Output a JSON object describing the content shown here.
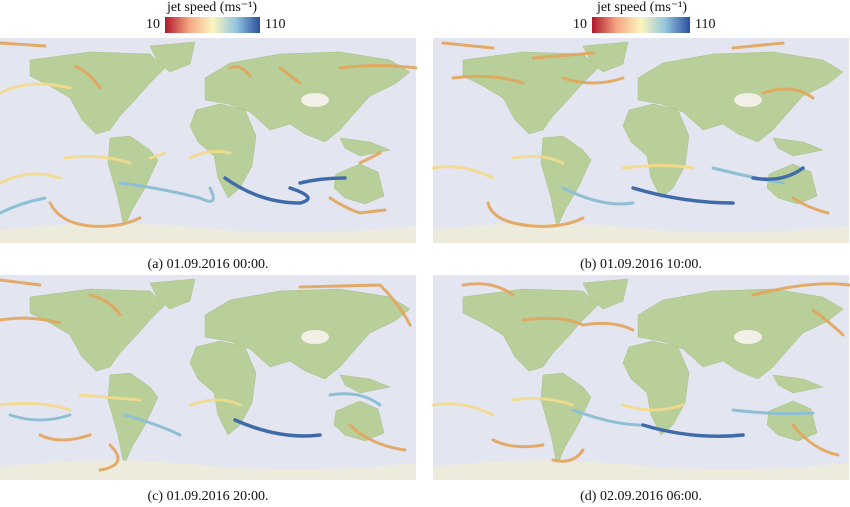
{
  "colorbar": {
    "label": "jet speed (ms⁻¹)",
    "min": 10,
    "max": 110
  },
  "panels": [
    {
      "caption": "(a) 01.09.2016 00:00."
    },
    {
      "caption": "(b) 01.09.2016 10:00."
    },
    {
      "caption": "(c) 01.09.2016 20:00."
    },
    {
      "caption": "(d) 02.09.2016 06:00."
    }
  ]
}
